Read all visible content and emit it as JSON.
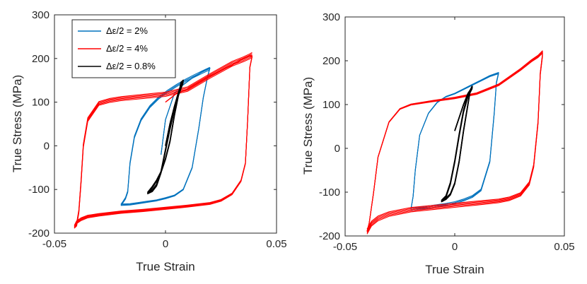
{
  "chart_data": [
    {
      "type": "line",
      "xlabel": "True Strain",
      "ylabel": "True Stress   (MPa)",
      "xlim": [
        -0.05,
        0.05
      ],
      "ylim": [
        -200,
        300
      ],
      "xticks": [
        "-0.05",
        "0",
        "0.05"
      ],
      "yticks": [
        "-200",
        "-100",
        "0",
        "100",
        "200",
        "300"
      ],
      "legend_position": "top-left",
      "series": [
        {
          "name": "Δε/2 = 2%",
          "color": "#0072BD",
          "amplitude": 0.02,
          "x": [
            -0.002,
            0.0,
            0.004,
            0.008,
            0.012,
            0.016,
            0.02,
            0.019,
            0.017,
            0.015,
            0.012,
            0.008,
            0.004,
            0.0,
            -0.004,
            -0.008,
            -0.012,
            -0.016,
            -0.02,
            -0.019,
            -0.018,
            -0.017,
            -0.016,
            -0.014,
            -0.011,
            -0.007,
            -0.003,
            0.001,
            0.005,
            0.009,
            0.013,
            0.017,
            0.02
          ],
          "y": [
            -20,
            60,
            120,
            140,
            155,
            168,
            178,
            160,
            110,
            40,
            -50,
            -100,
            -114,
            -120,
            -125,
            -128,
            -131,
            -134,
            -135,
            -128,
            -120,
            -105,
            -40,
            20,
            60,
            90,
            110,
            125,
            138,
            150,
            160,
            170,
            177
          ]
        },
        {
          "name": "Δε/2 = 4%",
          "color": "#FF0000",
          "amplitude": 0.04,
          "x": [
            0.0,
            0.005,
            0.01,
            0.02,
            0.03,
            0.035,
            0.038,
            0.039,
            0.038,
            0.037,
            0.036,
            0.034,
            0.03,
            0.025,
            0.02,
            0.01,
            0.0,
            -0.01,
            -0.02,
            -0.03,
            -0.035,
            -0.038,
            -0.04,
            -0.041,
            -0.04,
            -0.039,
            -0.038,
            -0.037,
            -0.035,
            -0.03,
            -0.025,
            -0.02,
            -0.01,
            0.0,
            0.01,
            0.02,
            0.03,
            0.035,
            0.038,
            0.039
          ],
          "y": [
            100,
            120,
            130,
            160,
            185,
            200,
            206,
            205,
            180,
            60,
            -40,
            -80,
            -110,
            -125,
            -132,
            -138,
            -143,
            -148,
            -152,
            -158,
            -162,
            -168,
            -175,
            -185,
            -180,
            -150,
            -80,
            0,
            60,
            97,
            104,
            108,
            113,
            118,
            130,
            160,
            188,
            198,
            205,
            208
          ]
        },
        {
          "name": "Δε/2 = 0.8%",
          "color": "#000000",
          "amplitude": 0.008,
          "x": [
            0.0,
            0.002,
            0.004,
            0.006,
            0.008,
            0.007,
            0.006,
            0.004,
            0.002,
            0.0,
            -0.002,
            -0.004,
            -0.006,
            -0.008,
            -0.006,
            -0.004,
            -0.002,
            0.0,
            0.002,
            0.004,
            0.006,
            0.008
          ],
          "y": [
            0,
            50,
            90,
            125,
            150,
            145,
            120,
            70,
            10,
            -30,
            -60,
            -80,
            -95,
            -108,
            -103,
            -90,
            -60,
            -10,
            40,
            85,
            120,
            148
          ]
        }
      ]
    },
    {
      "type": "line",
      "xlabel": "True Strain",
      "ylabel": "True Stress   (MPa)",
      "xlim": [
        -0.05,
        0.05
      ],
      "ylim": [
        -200,
        300
      ],
      "xticks": [
        "-0.05",
        "0",
        "0.05"
      ],
      "yticks": [
        "-200",
        "-100",
        "0",
        "100",
        "200",
        "300"
      ],
      "series": [
        {
          "color": "#0072BD",
          "amplitude": 0.02,
          "x": [
            -0.02,
            -0.019,
            -0.018,
            -0.016,
            -0.012,
            -0.008,
            -0.004,
            0.0,
            0.004,
            0.008,
            0.012,
            0.016,
            0.02,
            0.019,
            0.018,
            0.016,
            0.012,
            0.008,
            0.004,
            0.0,
            -0.004,
            -0.008,
            -0.012,
            -0.016,
            -0.02
          ],
          "y": [
            -140,
            -110,
            -50,
            30,
            80,
            105,
            118,
            125,
            135,
            145,
            155,
            165,
            172,
            150,
            80,
            -30,
            -95,
            -110,
            -118,
            -124,
            -128,
            -131,
            -134,
            -137,
            -140
          ]
        },
        {
          "color": "#FF0000",
          "amplitude": 0.04,
          "x": [
            -0.04,
            -0.039,
            -0.037,
            -0.035,
            -0.03,
            -0.025,
            -0.02,
            -0.01,
            0.0,
            0.01,
            0.02,
            0.03,
            0.035,
            0.038,
            0.04,
            0.04,
            0.039,
            0.038,
            0.036,
            0.034,
            0.03,
            0.025,
            0.02,
            0.01,
            0.0,
            -0.01,
            -0.02,
            -0.03,
            -0.035,
            -0.038,
            -0.04
          ],
          "y": [
            -190,
            -170,
            -100,
            -20,
            60,
            90,
            100,
            108,
            115,
            125,
            145,
            180,
            200,
            210,
            220,
            212,
            170,
            60,
            -40,
            -80,
            -105,
            -115,
            -120,
            -125,
            -130,
            -135,
            -140,
            -150,
            -160,
            -172,
            -190
          ]
        },
        {
          "color": "#000000",
          "amplitude": 0.008,
          "x": [
            0.0,
            0.002,
            0.004,
            0.006,
            0.008,
            0.007,
            0.006,
            0.004,
            0.002,
            0.0,
            -0.002,
            -0.004,
            -0.006,
            -0.004,
            -0.002,
            0.0,
            0.002,
            0.004,
            0.006,
            0.008
          ],
          "y": [
            40,
            70,
            100,
            125,
            140,
            130,
            100,
            40,
            -30,
            -80,
            -105,
            -115,
            -120,
            -110,
            -80,
            -30,
            30,
            85,
            120,
            140
          ]
        }
      ]
    }
  ]
}
